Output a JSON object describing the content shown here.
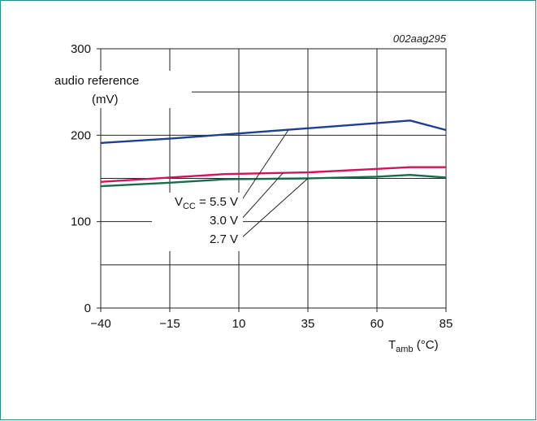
{
  "chart_data": {
    "type": "line",
    "figure_id": "002aag295",
    "x": [
      -40,
      -15,
      5,
      10,
      35,
      60,
      72,
      85
    ],
    "xticks": [
      "−40",
      "−15",
      "10",
      "35",
      "60",
      "85"
    ],
    "xtick_values": [
      -40,
      -15,
      10,
      35,
      60,
      85
    ],
    "yticks": [
      "0",
      "100",
      "200",
      "300"
    ],
    "ytick_values": [
      0,
      100,
      200,
      300
    ],
    "xlim": [
      -40,
      85
    ],
    "ylim": [
      0,
      300
    ],
    "grid": true,
    "ylabel_line1": "audio reference",
    "ylabel_line2": "(mV)",
    "xlabel_main": "T",
    "xlabel_sub": "amb",
    "xlabel_unit": " (°C)",
    "series": [
      {
        "label_main": "V",
        "label_sub": "CC",
        "label_value": " = 5.5 V",
        "color": "#1f3f8f",
        "x": [
          -40,
          -15,
          10,
          35,
          60,
          72,
          85
        ],
        "values": [
          191,
          196,
          202,
          208,
          214,
          217,
          206
        ]
      },
      {
        "label_main": "",
        "label_sub": "",
        "label_value": "3.0 V",
        "color": "#d4145a",
        "x": [
          -40,
          -15,
          5,
          35,
          60,
          72,
          85
        ],
        "values": [
          146,
          151,
          155,
          157,
          161,
          163,
          163
        ]
      },
      {
        "label_main": "",
        "label_sub": "",
        "label_value": "2.7 V",
        "color": "#1a6b4a",
        "x": [
          -40,
          -15,
          5,
          35,
          60,
          72,
          85
        ],
        "values": [
          141,
          145,
          149,
          150,
          152,
          154,
          151
        ]
      }
    ]
  }
}
